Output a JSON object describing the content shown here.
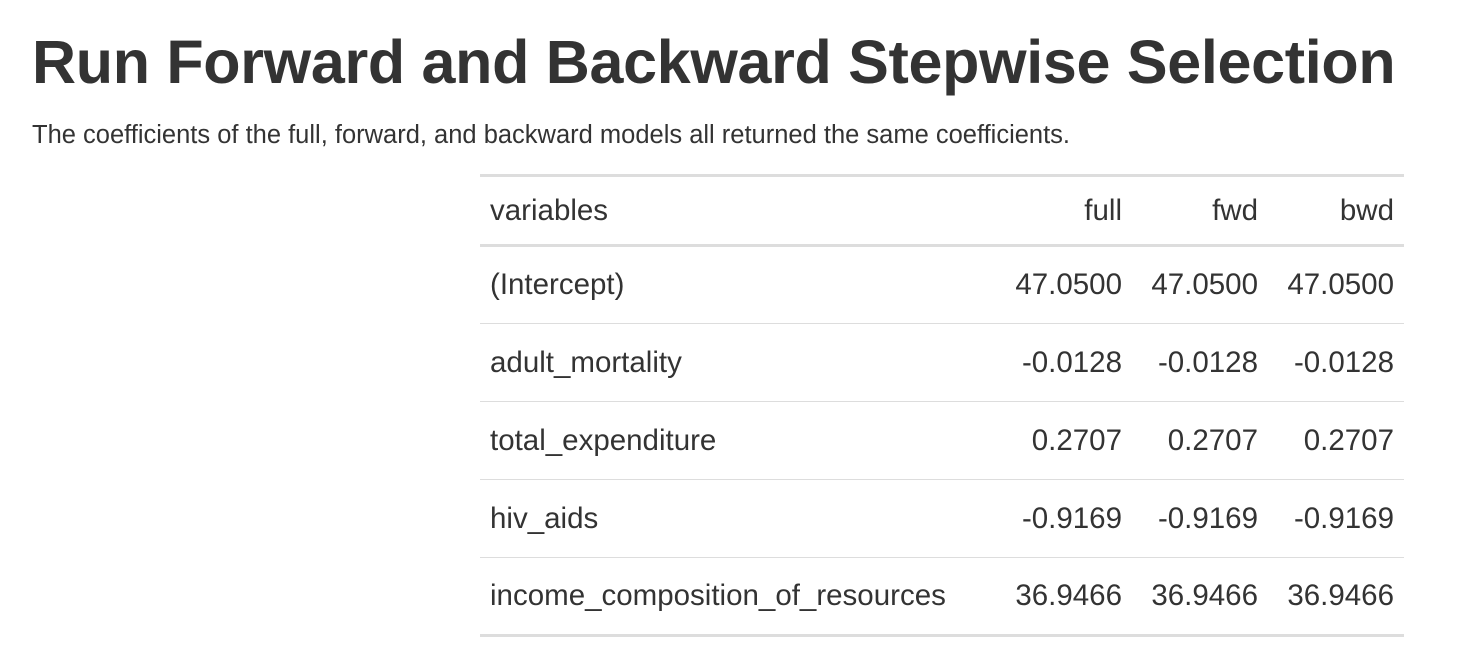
{
  "page": {
    "title": "Run Forward and Backward Stepwise Selection",
    "description": "The coefficients of the full, forward, and backward models all returned the same coefficients."
  },
  "table": {
    "headers": [
      "variables",
      "full",
      "fwd",
      "bwd"
    ],
    "rows": [
      [
        "(Intercept)",
        "47.0500",
        "47.0500",
        "47.0500"
      ],
      [
        "adult_mortality",
        "-0.0128",
        "-0.0128",
        "-0.0128"
      ],
      [
        "total_expenditure",
        "0.2707",
        "0.2707",
        "0.2707"
      ],
      [
        "hiv_aids",
        "-0.9169",
        "-0.9169",
        "-0.9169"
      ],
      [
        "income_composition_of_resources",
        "36.9466",
        "36.9466",
        "36.9466"
      ]
    ]
  }
}
